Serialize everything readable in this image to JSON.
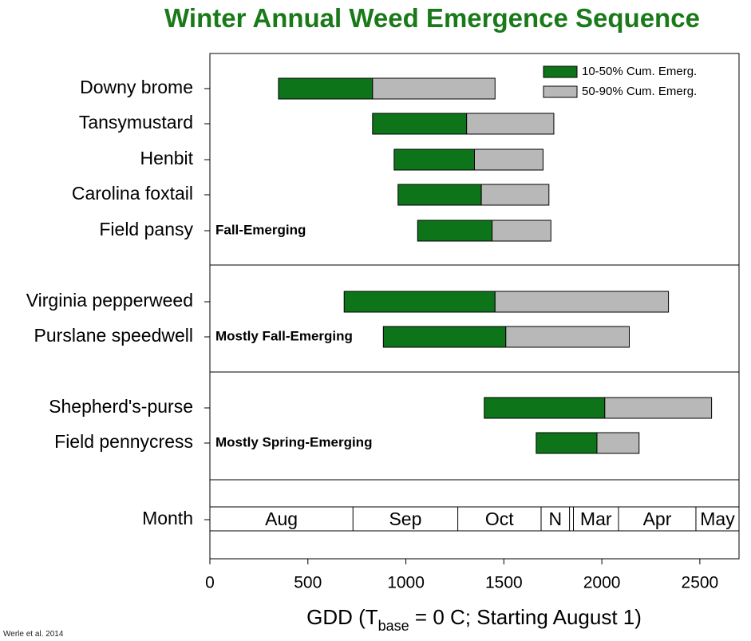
{
  "citation": "Werle et al. 2014",
  "chart_data": {
    "type": "bar",
    "title": "Winter Annual Weed Emergence Sequence",
    "xlabel": {
      "prefix": "GDD (T",
      "subscript": "base",
      "suffix": " = 0 C; Starting August 1)"
    },
    "xlim": [
      0,
      2700
    ],
    "xticks": [
      0,
      500,
      1000,
      1500,
      2000,
      2500
    ],
    "colors": {
      "emerg_10_50": "#0d7419",
      "emerg_50_90": "#b8b8b8"
    },
    "legend": {
      "position": "top-right",
      "entries": [
        "10-50% Cum. Emerg.",
        "50-90% Cum. Emerg."
      ]
    },
    "groups": [
      {
        "label": "Fall-Emerging",
        "species": [
          {
            "name": "Downy brome",
            "start": 350,
            "mid": 830,
            "end": 1455
          },
          {
            "name": "Tansymustard",
            "start": 830,
            "mid": 1310,
            "end": 1755
          },
          {
            "name": "Henbit",
            "start": 940,
            "mid": 1350,
            "end": 1700
          },
          {
            "name": "Carolina foxtail",
            "start": 960,
            "mid": 1385,
            "end": 1730
          },
          {
            "name": "Field pansy",
            "start": 1060,
            "mid": 1440,
            "end": 1740
          }
        ]
      },
      {
        "label": "Mostly Fall-Emerging",
        "species": [
          {
            "name": "Virginia pepperweed",
            "start": 685,
            "mid": 1455,
            "end": 2340
          },
          {
            "name": "Purslane speedwell",
            "start": 885,
            "mid": 1510,
            "end": 2140
          }
        ]
      },
      {
        "label": "Mostly Spring-Emerging",
        "species": [
          {
            "name": "Shepherd's-purse",
            "start": 1400,
            "mid": 2015,
            "end": 2560
          },
          {
            "name": "Field pennycress",
            "start": 1665,
            "mid": 1975,
            "end": 2190
          }
        ]
      }
    ],
    "month_row": {
      "label": "Month",
      "months": [
        {
          "name": "Aug",
          "start": 0,
          "end": 730
        },
        {
          "name": "Sep",
          "start": 730,
          "end": 1265
        },
        {
          "name": "Oct",
          "start": 1265,
          "end": 1690
        },
        {
          "name": "N",
          "start": 1690,
          "end": 1835
        },
        {
          "name": "",
          "start": 1835,
          "end": 1855
        },
        {
          "name": "Mar",
          "start": 1855,
          "end": 2085
        },
        {
          "name": "Apr",
          "start": 2085,
          "end": 2480
        },
        {
          "name": "May",
          "start": 2480,
          "end": 2700
        }
      ]
    }
  }
}
